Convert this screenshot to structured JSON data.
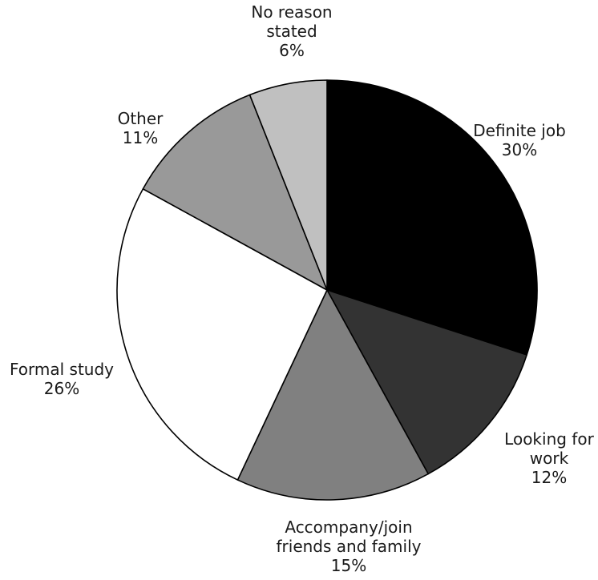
{
  "chart_data": {
    "type": "pie",
    "title": "",
    "start_angle_deg": 0,
    "direction": "clockwise",
    "slices": [
      {
        "label": "Definite job",
        "value": 30,
        "value_label": "30%",
        "color": "#000000"
      },
      {
        "label": "Looking for work",
        "value": 12,
        "value_label": "12%",
        "color": "#333333"
      },
      {
        "label": "Accompany/join friends and family",
        "value": 15,
        "value_label": "15%",
        "color": "#808080"
      },
      {
        "label": "Formal study",
        "value": 26,
        "value_label": "26%",
        "color": "#ffffff"
      },
      {
        "label": "Other",
        "value": 11,
        "value_label": "11%",
        "color": "#999999"
      },
      {
        "label": "No reason stated",
        "value": 6,
        "value_label": "6%",
        "color": "#c0c0c0"
      }
    ]
  }
}
